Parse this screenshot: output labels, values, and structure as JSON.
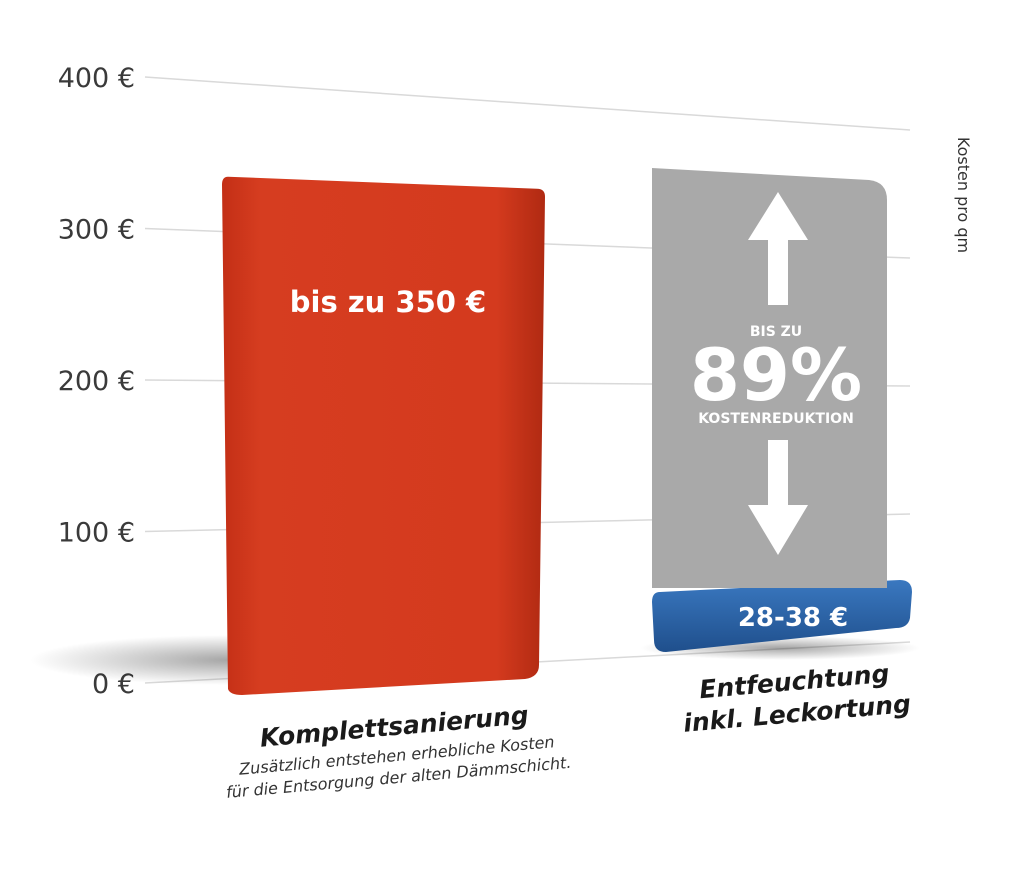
{
  "chart_data": {
    "type": "bar",
    "ylabel": "Kosten pro qm",
    "ylim": [
      0,
      400
    ],
    "yticks": [
      0,
      100,
      200,
      300,
      400
    ],
    "ytick_labels": [
      "0 €",
      "100 €",
      "200 €",
      "300 €",
      "400 €"
    ],
    "grid": true,
    "categories": [
      {
        "title": "Komplettsanierung",
        "subtitle_lines": [
          "Zusätzlich entstehen erhebliche Kosten",
          "für die Entsorgung der alten Dämmschicht."
        ]
      },
      {
        "title_lines": [
          "Entfeuchtung",
          "inkl. Leckortung"
        ]
      }
    ],
    "values": [
      350,
      38
    ],
    "value_labels": [
      "bis zu 350 €",
      "28-38 €"
    ],
    "colors": [
      "#d23a1f",
      "#2c64a8"
    ],
    "reduction_annotation": {
      "top": "BIS ZU",
      "value": "89%",
      "bottom": "KOSTENREDUKTION",
      "color": "#a9a9a9"
    }
  }
}
